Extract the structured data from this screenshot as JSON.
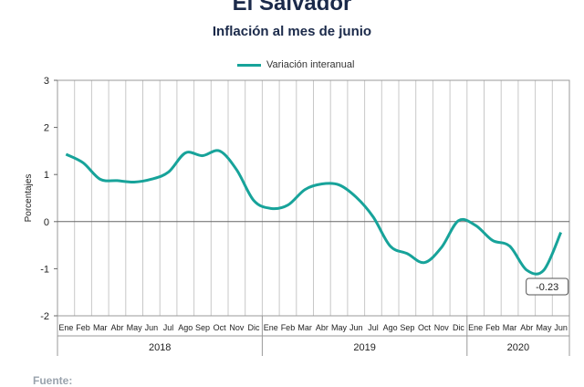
{
  "title": "El Salvador",
  "subtitle": "Inflación al mes de junio",
  "footer": "Fuente:",
  "chart_data": {
    "type": "line",
    "ylabel": "Porcentajes",
    "ylim": [
      -2,
      3
    ],
    "yticks": [
      -2,
      -1,
      0,
      1,
      2,
      3
    ],
    "grid": "vertical",
    "legend_placement": "top-center",
    "line_color": "#17a39a",
    "categories": [
      "Ene",
      "Feb",
      "Mar",
      "Abr",
      "May",
      "Jun",
      "Jul",
      "Ago",
      "Sep",
      "Oct",
      "Nov",
      "Dic",
      "Ene",
      "Feb",
      "Mar",
      "Abr",
      "May",
      "Jun",
      "Jul",
      "Ago",
      "Sep",
      "Oct",
      "Nov",
      "Dic",
      "Ene",
      "Feb",
      "Mar",
      "Abr",
      "May",
      "Jun"
    ],
    "years": [
      {
        "label": "2018",
        "count": 12
      },
      {
        "label": "2019",
        "count": 12
      },
      {
        "label": "2020",
        "count": 6
      }
    ],
    "series": [
      {
        "name": "Variación interanual",
        "values": [
          1.43,
          1.25,
          0.9,
          0.87,
          0.84,
          0.9,
          1.05,
          1.46,
          1.4,
          1.5,
          1.1,
          0.45,
          0.28,
          0.35,
          0.68,
          0.8,
          0.78,
          0.52,
          0.1,
          -0.52,
          -0.68,
          -0.87,
          -0.55,
          0.02,
          -0.08,
          -0.4,
          -0.52,
          -1.03,
          -1.03,
          -0.23
        ]
      }
    ],
    "annotation": {
      "index": 29,
      "text": "-0.23"
    }
  }
}
